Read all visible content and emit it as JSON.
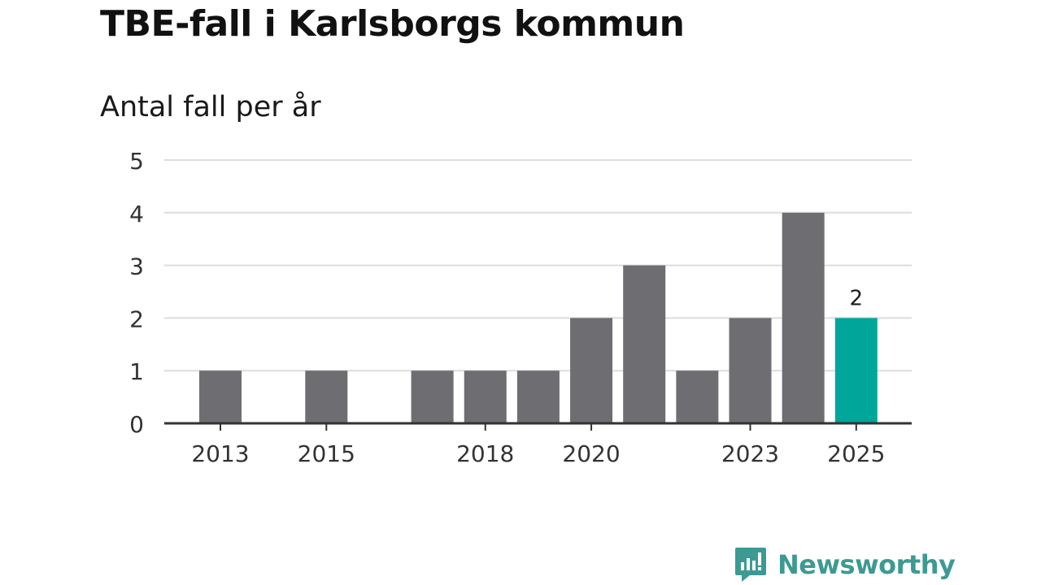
{
  "chart_data": {
    "type": "bar",
    "title": "TBE-fall i Karlsborgs kommun",
    "subtitle": "Antal fall per år",
    "categories": [
      2013,
      2014,
      2015,
      2016,
      2017,
      2018,
      2019,
      2020,
      2021,
      2022,
      2023,
      2024,
      2025
    ],
    "values": [
      1,
      0,
      1,
      0,
      1,
      1,
      1,
      2,
      3,
      1,
      2,
      4,
      2
    ],
    "x_tick_labels": [
      2013,
      2015,
      2018,
      2020,
      2023,
      2025
    ],
    "y_ticks": [
      0,
      1,
      2,
      3,
      4,
      5
    ],
    "ylim": [
      0,
      5
    ],
    "grid": true,
    "highlight_category": 2025,
    "data_labels": [
      {
        "category": 2025,
        "text": "2"
      }
    ],
    "colors": {
      "bar": "#6e6d72",
      "highlight": "#00a69a",
      "grid": "#dddddd",
      "axis": "#333333"
    }
  },
  "brand": {
    "name": "Newsworthy",
    "icon": "newsworthy-logo-icon",
    "color": "#3d9a93"
  }
}
